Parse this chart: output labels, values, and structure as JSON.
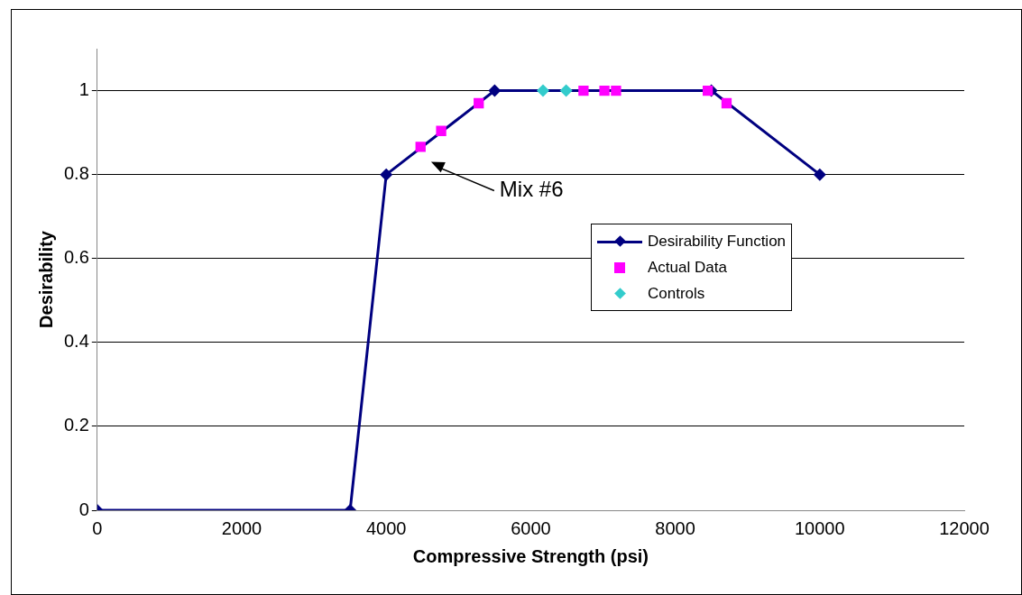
{
  "chart_data": {
    "type": "line",
    "xlabel": "Compressive Strength (psi)",
    "ylabel": "Desirability",
    "xlim": [
      0,
      12000
    ],
    "xticks": [
      0,
      2000,
      4000,
      6000,
      8000,
      10000,
      12000
    ],
    "ylim": [
      0,
      1.1
    ],
    "yticks": [
      0,
      0.2,
      0.4,
      0.6,
      0.8,
      1
    ],
    "grid": "y",
    "legend": "right",
    "series": [
      {
        "name": "Desirability Function",
        "type": "line",
        "color": "#000080",
        "marker": "diamond",
        "x": [
          0,
          3500,
          4000,
          5500,
          8500,
          10000
        ],
        "values": [
          0,
          0,
          0.8,
          1,
          1,
          0.8
        ]
      },
      {
        "name": "Actual Data",
        "type": "scatter",
        "color": "#ff00ff",
        "marker": "square",
        "x": [
          4475,
          4760,
          5280,
          6730,
          7020,
          7180,
          8450,
          8710
        ],
        "values": [
          0.866,
          0.904,
          0.97,
          1,
          1,
          1,
          1,
          0.97
        ]
      },
      {
        "name": "Controls",
        "type": "scatter",
        "color": "#33cccc",
        "marker": "diamond",
        "x": [
          6170,
          6490
        ],
        "values": [
          1,
          1
        ]
      }
    ],
    "annotations": [
      "Mix #6"
    ]
  }
}
